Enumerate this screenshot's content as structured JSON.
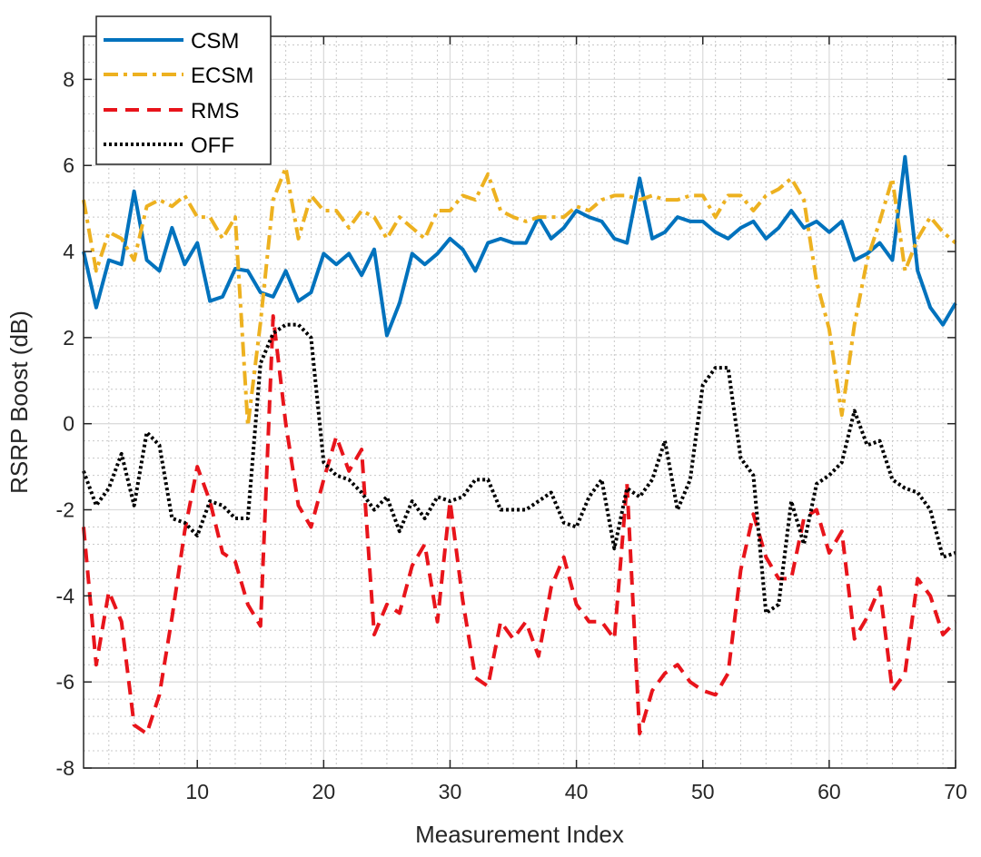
{
  "chart_data": {
    "type": "line",
    "title": "",
    "xlabel": "Measurement Index",
    "ylabel": "RSRP Boost (dB)",
    "xlim": [
      1,
      70
    ],
    "ylim": [
      -8,
      9
    ],
    "xticks": [
      10,
      20,
      30,
      40,
      50,
      60,
      70
    ],
    "yticks": [
      -8,
      -6,
      -4,
      -2,
      0,
      2,
      4,
      6,
      8
    ],
    "grid": "major and minor",
    "legend_position": "top-left",
    "series": [
      {
        "name": "CSM",
        "color": "#0072BD",
        "style": "solid",
        "values": [
          4.0,
          2.7,
          3.8,
          3.7,
          5.4,
          3.8,
          3.55,
          4.55,
          3.7,
          4.2,
          2.85,
          2.95,
          3.6,
          3.55,
          3.05,
          2.95,
          3.55,
          2.85,
          3.05,
          3.95,
          3.7,
          3.95,
          3.45,
          4.05,
          2.05,
          2.8,
          3.95,
          3.7,
          3.95,
          4.3,
          4.05,
          3.55,
          4.2,
          4.3,
          4.2,
          4.2,
          4.8,
          4.3,
          4.55,
          4.95,
          4.8,
          4.7,
          4.3,
          4.2,
          5.7,
          4.3,
          4.45,
          4.8,
          4.7,
          4.7,
          4.45,
          4.3,
          4.55,
          4.7,
          4.3,
          4.55,
          4.95,
          4.55,
          4.7,
          4.45,
          4.7,
          3.8,
          3.95,
          4.2,
          3.8,
          6.2,
          3.55,
          2.7,
          2.3,
          2.8
        ]
      },
      {
        "name": "ECSM",
        "color": "#EDB120",
        "style": "dash-dot",
        "values": [
          5.2,
          3.55,
          4.45,
          4.3,
          3.8,
          5.05,
          5.2,
          5.05,
          5.3,
          4.8,
          4.8,
          4.3,
          4.8,
          -0.05,
          2.35,
          5.2,
          5.95,
          4.3,
          5.3,
          4.95,
          4.95,
          4.55,
          4.95,
          4.8,
          4.3,
          4.8,
          4.55,
          4.3,
          4.95,
          4.95,
          5.3,
          5.2,
          5.8,
          4.95,
          4.8,
          4.7,
          4.8,
          4.8,
          4.8,
          5.05,
          4.95,
          5.2,
          5.3,
          5.3,
          5.2,
          5.3,
          5.2,
          5.2,
          5.3,
          5.3,
          4.8,
          5.3,
          5.3,
          4.95,
          5.3,
          5.45,
          5.7,
          5.2,
          3.3,
          2.2,
          0.2,
          2.3,
          3.8,
          4.7,
          5.7,
          3.55,
          4.3,
          4.8,
          4.45,
          4.2
        ]
      },
      {
        "name": "RMS",
        "color": "#E8141B",
        "style": "dashed",
        "values": [
          -2.4,
          -5.6,
          -3.9,
          -4.6,
          -7.0,
          -7.2,
          -6.3,
          -4.5,
          -2.5,
          -1.0,
          -1.8,
          -3.0,
          -3.2,
          -4.2,
          -4.7,
          2.5,
          0.0,
          -1.9,
          -2.4,
          -1.3,
          -0.3,
          -1.1,
          -0.6,
          -4.9,
          -4.2,
          -4.4,
          -3.3,
          -2.8,
          -4.6,
          -1.8,
          -4.1,
          -5.9,
          -6.1,
          -4.6,
          -5.0,
          -4.6,
          -5.4,
          -3.8,
          -3.1,
          -4.2,
          -4.6,
          -4.6,
          -5.0,
          -1.4,
          -7.2,
          -6.2,
          -5.8,
          -5.6,
          -6.0,
          -6.2,
          -6.3,
          -5.8,
          -3.4,
          -2.1,
          -3.1,
          -3.6,
          -3.6,
          -2.2,
          -2.0,
          -3.0,
          -2.5,
          -5.0,
          -4.5,
          -3.8,
          -6.2,
          -5.8,
          -3.6,
          -4.0,
          -4.9,
          -4.6
        ]
      },
      {
        "name": "OFF",
        "color": "#000000",
        "style": "dotted",
        "values": [
          -1.1,
          -1.9,
          -1.5,
          -0.7,
          -1.9,
          -0.2,
          -0.5,
          -2.2,
          -2.3,
          -2.6,
          -1.8,
          -1.9,
          -2.2,
          -2.2,
          1.4,
          2.1,
          2.3,
          2.3,
          2.0,
          -0.9,
          -1.2,
          -1.3,
          -1.6,
          -2.0,
          -1.7,
          -2.5,
          -1.8,
          -2.2,
          -1.7,
          -1.8,
          -1.7,
          -1.3,
          -1.3,
          -2.0,
          -2.0,
          -2.0,
          -1.8,
          -1.6,
          -2.3,
          -2.4,
          -1.7,
          -1.3,
          -2.9,
          -1.5,
          -1.7,
          -1.3,
          -0.4,
          -2.0,
          -1.3,
          0.9,
          1.3,
          1.3,
          -0.8,
          -1.2,
          -4.4,
          -4.2,
          -1.8,
          -2.8,
          -1.4,
          -1.2,
          -0.9,
          0.3,
          -0.5,
          -0.4,
          -1.3,
          -1.5,
          -1.6,
          -2.0,
          -3.1,
          -3.0
        ]
      }
    ]
  }
}
